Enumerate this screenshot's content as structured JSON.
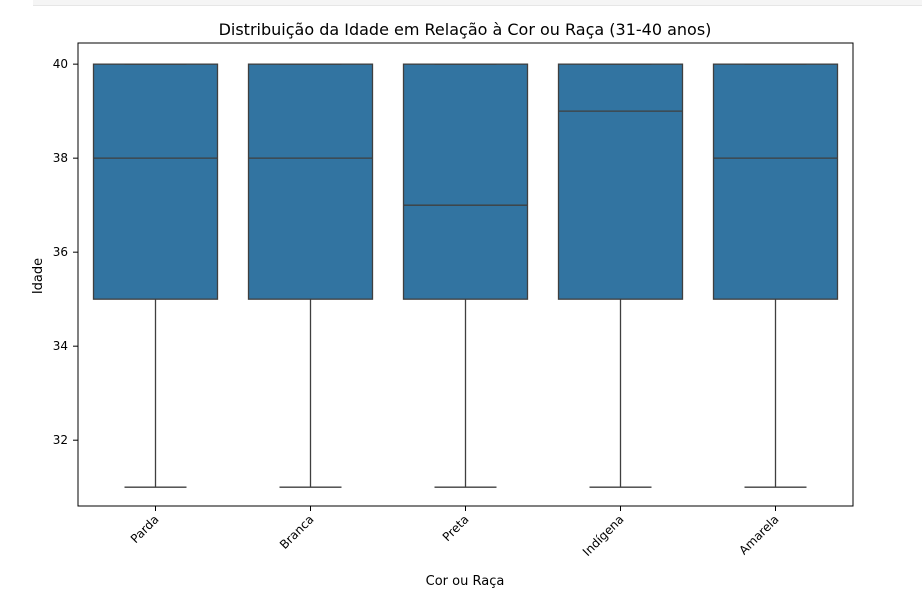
{
  "chart_data": {
    "type": "box",
    "title": "Distribuição da Idade em Relação à Cor ou Raça (31-40 anos)",
    "xlabel": "Cor ou Raça",
    "ylabel": "Idade",
    "ylim": [
      30.6,
      40.45
    ],
    "yticks": [
      32,
      34,
      36,
      38,
      40
    ],
    "grid": false,
    "box_color": "#3274a1",
    "line_color": "#3f3f3f",
    "categories": [
      "Parda",
      "Branca",
      "Preta",
      "Indígena",
      "Amarela"
    ],
    "boxes": [
      {
        "category": "Parda",
        "whisker_low": 31,
        "q1": 35,
        "median": 38,
        "q3": 40,
        "whisker_high": 40
      },
      {
        "category": "Branca",
        "whisker_low": 31,
        "q1": 35,
        "median": 38,
        "q3": 40,
        "whisker_high": 40
      },
      {
        "category": "Preta",
        "whisker_low": 31,
        "q1": 35,
        "median": 37,
        "q3": 40,
        "whisker_high": 40
      },
      {
        "category": "Indígena",
        "whisker_low": 31,
        "q1": 35,
        "median": 39,
        "q3": 40,
        "whisker_high": 40
      },
      {
        "category": "Amarela",
        "whisker_low": 31,
        "q1": 35,
        "median": 38,
        "q3": 40,
        "whisker_high": 40
      }
    ]
  }
}
